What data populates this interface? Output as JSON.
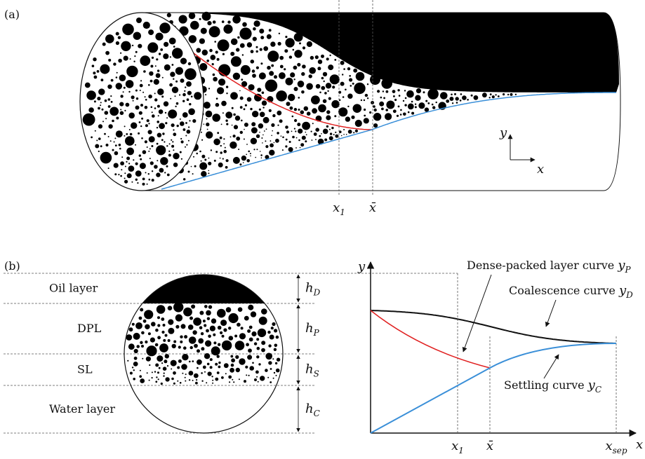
{
  "panel_a": {
    "label": "(a)",
    "markers": [
      {
        "symbol": "x",
        "subscript": "1"
      },
      {
        "symbol": "x̄"
      }
    ],
    "axes": {
      "y": "y",
      "x": "x"
    }
  },
  "panel_b": {
    "label": "(b)",
    "layers": [
      {
        "name": "Oil layer",
        "height": {
          "symbol": "h",
          "subscript": "D"
        }
      },
      {
        "name": "DPL",
        "height": {
          "symbol": "h",
          "subscript": "P"
        }
      },
      {
        "name": "SL",
        "height": {
          "symbol": "h",
          "subscript": "S"
        }
      },
      {
        "name": "Water layer",
        "height": {
          "symbol": "h",
          "subscript": "C"
        }
      }
    ],
    "plot": {
      "y_axis": "y",
      "x_axis": "x",
      "ticks": [
        {
          "symbol": "x",
          "subscript": "1"
        },
        {
          "symbol": "x̄"
        },
        {
          "symbol": "x",
          "subscript": "sep"
        }
      ],
      "curves": [
        {
          "text": "Dense-packed layer curve",
          "symbol": "y",
          "subscript": "P"
        },
        {
          "text": "Coalescence curve",
          "symbol": "y",
          "subscript": "D"
        },
        {
          "text": "Settling curve",
          "symbol": "y",
          "subscript": "C"
        }
      ]
    }
  }
}
